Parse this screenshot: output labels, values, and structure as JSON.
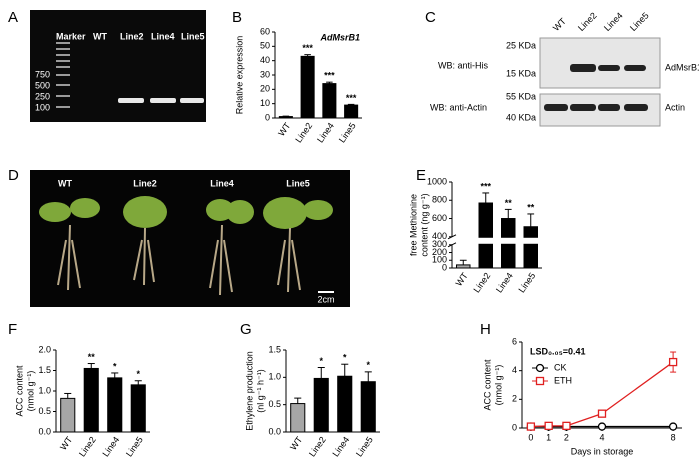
{
  "gel": {
    "panel": "A",
    "lanes": [
      "Marker",
      "WT",
      "Line2",
      "Line4",
      "Line5"
    ],
    "ladder": [
      "750",
      "500",
      "250",
      "100"
    ]
  },
  "western_blot": {
    "panel": "C",
    "lanes": [
      "WT",
      "Line2",
      "Line4",
      "Line5"
    ],
    "rows": [
      {
        "antibody": "WB: anti-His",
        "markers": [
          "25 KDa",
          "15 KDa"
        ],
        "protein": "AdMsrB1"
      },
      {
        "antibody": "WB: anti-Actin",
        "markers": [
          "55 KDa",
          "40 KDa"
        ],
        "protein": "Actin"
      }
    ]
  },
  "plant_photo": {
    "panel": "D",
    "labels": [
      "WT",
      "Line2",
      "Line4",
      "Line5"
    ],
    "scale_bar": "2cm"
  },
  "chart_data": [
    {
      "type": "bar",
      "panel": "B",
      "title": "AdMsrB1",
      "ylabel": [
        "Relative expression"
      ],
      "categories": [
        "WT",
        "Line2",
        "Line4",
        "Line5"
      ],
      "values": [
        1,
        43,
        24,
        9
      ],
      "errors": [
        0.3,
        1.2,
        1,
        0.5
      ],
      "annotations": [
        null,
        "***",
        "***",
        "***"
      ],
      "colors": [
        "#000000",
        "#000000",
        "#000000",
        "#000000"
      ],
      "ylim": [
        0,
        60
      ],
      "yticks": [
        0,
        10,
        20,
        30,
        40,
        50,
        60
      ]
    },
    {
      "type": "bar",
      "panel": "E",
      "ylabel": [
        "free Methionine",
        "content (ng g⁻¹)"
      ],
      "categories": [
        "WT",
        "Line2",
        "Line4",
        "Line5"
      ],
      "values": [
        40,
        770,
        600,
        510
      ],
      "errors": [
        60,
        110,
        100,
        140
      ],
      "annotations": [
        null,
        "***",
        "**",
        "**"
      ],
      "colors": [
        "#a6a6a6",
        "#000000",
        "#000000",
        "#000000"
      ],
      "ylim": [
        0,
        1000
      ],
      "axis_break": [
        300,
        400
      ],
      "yticks": [
        0,
        100,
        200,
        300,
        400,
        600,
        800,
        1000
      ]
    },
    {
      "type": "bar",
      "panel": "F",
      "ylabel": [
        "ACC content",
        "(nmol g⁻¹)"
      ],
      "categories": [
        "WT",
        "Line2",
        "Line4",
        "Line5"
      ],
      "values": [
        0.82,
        1.55,
        1.32,
        1.15
      ],
      "errors": [
        0.12,
        0.12,
        0.12,
        0.1
      ],
      "annotations": [
        null,
        "**",
        "*",
        "*"
      ],
      "colors": [
        "#a6a6a6",
        "#000000",
        "#000000",
        "#000000"
      ],
      "ylim": [
        0,
        2
      ],
      "yticks": [
        {
          "value": 0,
          "label": "0.0"
        },
        0.5,
        {
          "value": 1,
          "label": "1.0"
        },
        1.5,
        {
          "value": 2,
          "label": "2.0"
        }
      ]
    },
    {
      "type": "bar",
      "panel": "G",
      "ylabel": [
        "Ethylene production",
        "(nl g⁻¹ h⁻¹)"
      ],
      "categories": [
        "WT",
        "Line2",
        "Line4",
        "Line5"
      ],
      "values": [
        0.52,
        0.98,
        1.02,
        0.92
      ],
      "errors": [
        0.1,
        0.2,
        0.22,
        0.18
      ],
      "annotations": [
        null,
        "*",
        "*",
        "*"
      ],
      "colors": [
        "#a6a6a6",
        "#000000",
        "#000000",
        "#000000"
      ],
      "ylim": [
        0,
        1.5
      ],
      "yticks": [
        {
          "value": 0,
          "label": "0.0"
        },
        0.5,
        {
          "value": 1,
          "label": "1.0"
        },
        1.5
      ]
    },
    {
      "type": "line",
      "panel": "H",
      "annotation": "LSD₀.₀₅=0.41",
      "ylabel": [
        "ACC content",
        "(nmol g⁻¹)"
      ],
      "xlabel": "Days in storage",
      "x": [
        0,
        1,
        2,
        4,
        8
      ],
      "series": [
        {
          "name": "CK",
          "color": "#000000",
          "marker": "circle",
          "values": [
            0.1,
            0.1,
            0.1,
            0.1,
            0.1
          ],
          "errors": [
            null,
            null,
            null,
            null,
            null
          ]
        },
        {
          "name": "ETH",
          "color": "#e02020",
          "marker": "square",
          "values": [
            0.1,
            0.15,
            0.15,
            1.0,
            4.6
          ],
          "errors": [
            null,
            null,
            null,
            0.1,
            0.7
          ]
        }
      ],
      "xlim": [
        -0.5,
        8.5
      ],
      "xticks": [
        0,
        1,
        2,
        4,
        8
      ],
      "ylim": [
        0,
        6
      ],
      "yticks": [
        0,
        2,
        4,
        6
      ],
      "legend": "upper-left"
    }
  ]
}
